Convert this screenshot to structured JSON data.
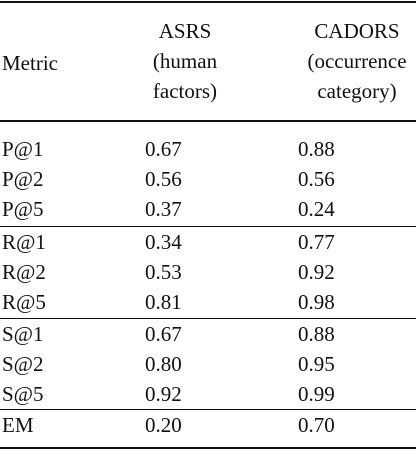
{
  "header": {
    "metric": "Metric",
    "asrs": [
      "ASRS",
      "(human",
      "factors)"
    ],
    "cadors": [
      "CADORS",
      "(occurrence",
      "category)"
    ]
  },
  "groups": [
    {
      "rows": [
        {
          "metric": "P@1",
          "asrs": "0.67",
          "cadors": "0.88"
        },
        {
          "metric": "P@2",
          "asrs": "0.56",
          "cadors": "0.56"
        },
        {
          "metric": "P@5",
          "asrs": "0.37",
          "cadors": "0.24"
        }
      ]
    },
    {
      "rows": [
        {
          "metric": "R@1",
          "asrs": "0.34",
          "cadors": "0.77"
        },
        {
          "metric": "R@2",
          "asrs": "0.53",
          "cadors": "0.92"
        },
        {
          "metric": "R@5",
          "asrs": "0.81",
          "cadors": "0.98"
        }
      ]
    },
    {
      "rows": [
        {
          "metric": "S@1",
          "asrs": "0.67",
          "cadors": "0.88"
        },
        {
          "metric": "S@2",
          "asrs": "0.80",
          "cadors": "0.95"
        },
        {
          "metric": "S@5",
          "asrs": "0.92",
          "cadors": "0.99"
        }
      ]
    },
    {
      "rows": [
        {
          "metric": "EM",
          "asrs": "0.20",
          "cadors": "0.70"
        }
      ]
    }
  ]
}
